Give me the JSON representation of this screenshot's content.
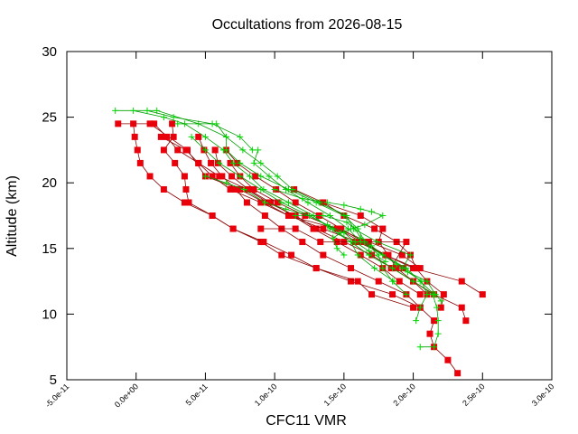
{
  "chart_data": {
    "type": "line",
    "title": "Occultations from 2026-08-15",
    "xlabel": "CFC11 VMR",
    "ylabel": "Altitude (km)",
    "xlim": [
      -5e-11,
      3e-10
    ],
    "ylim": [
      5,
      30
    ],
    "x_ticks": [
      -5e-11,
      0,
      5e-11,
      1e-10,
      1.5e-10,
      2e-10,
      2.5e-10,
      3e-10
    ],
    "x_tick_labels": [
      "-5.0e-11",
      "0.0e+00",
      "5.0e-11",
      "1.0e-10",
      "1.5e-10",
      "2.0e-10",
      "2.5e-10",
      "3.0e-10"
    ],
    "y_ticks": [
      5,
      10,
      15,
      20,
      25,
      30
    ],
    "y_tick_labels": [
      "5",
      "10",
      "15",
      "20",
      "25",
      "30"
    ],
    "grid": false,
    "legend": "none",
    "colors": {
      "red": "#e8000b",
      "green": "#00d800",
      "redline": "#8b0000",
      "greenline": "#00a000"
    },
    "series": [
      {
        "marker": "square",
        "color": "red",
        "points": [
          [
            -1.3e-11,
            24.5
          ],
          [
            1e-11,
            24.5
          ],
          [
            3.7e-11,
            22.5
          ],
          [
            5e-11,
            20.5
          ],
          [
            7.5e-11,
            19.5
          ],
          [
            1.1e-10,
            17.5
          ],
          [
            1.45e-10,
            16.5
          ],
          [
            1.8e-10,
            14.5
          ],
          [
            2e-10,
            13.5
          ],
          [
            2.35e-10,
            12.5
          ],
          [
            2.5e-10,
            11.5
          ]
        ]
      },
      {
        "marker": "square",
        "color": "red",
        "points": [
          [
            -2e-12,
            24.5
          ],
          [
            -1e-12,
            23.5
          ],
          [
            1e-12,
            22.5
          ],
          [
            3e-12,
            21.5
          ],
          [
            1e-11,
            20.5
          ],
          [
            2e-11,
            19.5
          ],
          [
            3.5e-11,
            18.5
          ],
          [
            5.5e-11,
            17.5
          ],
          [
            7e-11,
            16.5
          ],
          [
            9e-11,
            15.5
          ],
          [
            1.05e-10,
            14.5
          ],
          [
            1.3e-10,
            13.5
          ],
          [
            1.55e-10,
            12.5
          ],
          [
            1.85e-10,
            11.5
          ],
          [
            2.05e-10,
            10.5
          ],
          [
            2.15e-10,
            9.5
          ],
          [
            2.12e-10,
            8.5
          ],
          [
            2.15e-10,
            7.5
          ],
          [
            2.25e-10,
            6.5
          ],
          [
            2.32e-10,
            5.5
          ]
        ]
      },
      {
        "marker": "square",
        "color": "red",
        "points": [
          [
            1.8e-11,
            23.5
          ],
          [
            3.6e-11,
            22.5
          ],
          [
            4.5e-11,
            21.5
          ],
          [
            6e-11,
            20.5
          ],
          [
            8e-11,
            19.5
          ],
          [
            9.5e-11,
            18.5
          ],
          [
            1.15e-10,
            17.5
          ],
          [
            1.3e-10,
            16.5
          ],
          [
            1.5e-10,
            15.5
          ],
          [
            1.7e-10,
            14.5
          ],
          [
            1.85e-10,
            13.5
          ],
          [
            2e-10,
            12.5
          ],
          [
            2.15e-10,
            11.5
          ],
          [
            2.35e-10,
            10.5
          ],
          [
            2.38e-10,
            9.5
          ]
        ]
      },
      {
        "marker": "square",
        "color": "red",
        "points": [
          [
            1.3e-11,
            24.5
          ],
          [
            2.2e-11,
            23.5
          ],
          [
            3e-11,
            22.5
          ],
          [
            4.5e-11,
            21.5
          ],
          [
            5.5e-11,
            20.5
          ],
          [
            6.8e-11,
            19.5
          ],
          [
            9e-11,
            18.5
          ],
          [
            1.1e-10,
            17.5
          ],
          [
            1.35e-10,
            16.5
          ],
          [
            1.6e-10,
            15.5
          ],
          [
            1.8e-10,
            14.5
          ],
          [
            2.02e-10,
            13.5
          ],
          [
            2.1e-10,
            12.5
          ],
          [
            2.22e-10,
            11.5
          ],
          [
            2.2e-10,
            10.5
          ]
        ]
      },
      {
        "marker": "square",
        "color": "red",
        "points": [
          [
            2.6e-11,
            24.5
          ],
          [
            2.7e-11,
            23.5
          ],
          [
            2e-11,
            22.5
          ],
          [
            2.8e-11,
            21.5
          ],
          [
            3.5e-11,
            20.5
          ],
          [
            3.6e-11,
            19.5
          ],
          [
            3.8e-11,
            18.5
          ],
          [
            5.5e-11,
            17.5
          ],
          [
            7e-11,
            16.5
          ],
          [
            9.2e-11,
            15.5
          ],
          [
            1.12e-10,
            14.5
          ],
          [
            1.3e-10,
            13.5
          ],
          [
            1.6e-10,
            12.5
          ],
          [
            1.7e-10,
            11.5
          ],
          [
            2e-10,
            10.5
          ]
        ]
      },
      {
        "marker": "square",
        "color": "red",
        "points": [
          [
            4.5e-11,
            23.5
          ],
          [
            4.9e-11,
            22.5
          ],
          [
            5.4e-11,
            21.5
          ],
          [
            6.2e-11,
            20.5
          ],
          [
            7.2e-11,
            19.5
          ],
          [
            8e-11,
            18.5
          ],
          [
            9.3e-11,
            17.5
          ],
          [
            1.05e-10,
            16.5
          ],
          [
            1.2e-10,
            15.5
          ],
          [
            1.35e-10,
            14.5
          ],
          [
            1.55e-10,
            13.5
          ],
          [
            1.75e-10,
            12.5
          ],
          [
            1.95e-10,
            11.5
          ],
          [
            2.05e-10,
            10.5
          ]
        ]
      },
      {
        "marker": "square",
        "color": "red",
        "points": [
          [
            5.7e-11,
            22.5
          ],
          [
            5.9e-11,
            21.5
          ],
          [
            6.9e-11,
            20.5
          ],
          [
            8.1e-11,
            19.5
          ],
          [
            9.7e-11,
            18.5
          ],
          [
            1.13e-10,
            17.5
          ],
          [
            1.28e-10,
            16.5
          ],
          [
            1.45e-10,
            15.5
          ],
          [
            1.62e-10,
            14.5
          ],
          [
            1.78e-10,
            13.5
          ],
          [
            1.9e-10,
            12.5
          ],
          [
            2.05e-10,
            11.5
          ]
        ]
      },
      {
        "marker": "square",
        "color": "red",
        "points": [
          [
            6.5e-11,
            22.5
          ],
          [
            7.3e-11,
            21.5
          ],
          [
            8.6e-11,
            20.5
          ],
          [
            1.01e-10,
            19.5
          ],
          [
            1.15e-10,
            18.5
          ],
          [
            1.32e-10,
            17.5
          ],
          [
            1.48e-10,
            16.5
          ],
          [
            1.64e-10,
            15.5
          ],
          [
            1.8e-10,
            14.5
          ],
          [
            1.93e-10,
            13.5
          ]
        ]
      },
      {
        "marker": "square",
        "color": "red",
        "points": [
          [
            6.8e-11,
            21.5
          ],
          [
            7.5e-11,
            20.5
          ],
          [
            8.5e-11,
            19.5
          ],
          [
            1.02e-10,
            18.5
          ],
          [
            1.22e-10,
            17.5
          ],
          [
            1.45e-10,
            16.5
          ],
          [
            1.68e-10,
            15.5
          ],
          [
            1.92e-10,
            14.5
          ],
          [
            2.05e-10,
            13.5
          ]
        ]
      },
      {
        "marker": "square",
        "color": "red",
        "points": [
          [
            1.14e-10,
            19.5
          ],
          [
            1.35e-10,
            18.5
          ],
          [
            1.5e-10,
            17.5
          ],
          [
            1.72e-10,
            16.5
          ],
          [
            1.88e-10,
            15.5
          ],
          [
            1.98e-10,
            14.5
          ],
          [
            2.02e-10,
            13.5
          ]
        ]
      },
      {
        "marker": "square",
        "color": "red",
        "points": [
          [
            1.35e-10,
            18.5
          ],
          [
            1.62e-10,
            17.5
          ],
          [
            1.78e-10,
            16.5
          ],
          [
            1.75e-10,
            15.5
          ],
          [
            1.82e-10,
            14.5
          ],
          [
            1.88e-10,
            13.5
          ],
          [
            2e-10,
            12.5
          ],
          [
            2.1e-10,
            11.5
          ]
        ]
      },
      {
        "marker": "square",
        "color": "red",
        "points": [
          [
            9e-11,
            16.5
          ],
          [
            1.15e-10,
            16.5
          ],
          [
            1.33e-10,
            15.5
          ],
          [
            1.58e-10,
            15.5
          ],
          [
            1.95e-10,
            15.5
          ],
          [
            1.84e-10,
            13.5
          ]
        ]
      },
      {
        "marker": "plus",
        "color": "green",
        "points": [
          [
            -1.5e-11,
            25.5
          ],
          [
            1.5e-11,
            25.5
          ],
          [
            4.5e-11,
            24.5
          ],
          [
            6.5e-11,
            23.5
          ],
          [
            7.7e-11,
            22.5
          ],
          [
            9e-11,
            21.5
          ],
          [
            1.02e-10,
            20.5
          ],
          [
            1.13e-10,
            19.5
          ],
          [
            1.32e-10,
            18.5
          ],
          [
            1.52e-10,
            17.5
          ],
          [
            1.57e-10,
            16.5
          ],
          [
            1.74e-10,
            15.5
          ],
          [
            1.98e-10,
            14.5
          ],
          [
            1.92e-10,
            13.5
          ],
          [
            2.06e-10,
            12.5
          ],
          [
            2.1e-10,
            11.5
          ],
          [
            2.05e-10,
            10.5
          ],
          [
            2.02e-10,
            9.5
          ]
        ]
      },
      {
        "marker": "plus",
        "color": "green",
        "points": [
          [
            -2e-12,
            25.5
          ],
          [
            2e-11,
            25
          ],
          [
            3.5e-11,
            24.5
          ],
          [
            5e-11,
            23.5
          ],
          [
            6.3e-11,
            22.5
          ],
          [
            7e-11,
            21.5
          ],
          [
            8.2e-11,
            20.5
          ],
          [
            9.2e-11,
            19.5
          ],
          [
            1.1e-10,
            18.5
          ],
          [
            1.28e-10,
            17.5
          ],
          [
            1.4e-10,
            16.5
          ],
          [
            1.55e-10,
            15.5
          ],
          [
            1.68e-10,
            14.5
          ],
          [
            1.85e-10,
            13.5
          ],
          [
            2e-10,
            12.5
          ],
          [
            2.14e-10,
            11.5
          ],
          [
            2.17e-10,
            10.5
          ],
          [
            2.18e-10,
            9.5
          ],
          [
            2.18e-10,
            8.5
          ],
          [
            2.15e-10,
            7.5
          ],
          [
            2.05e-10,
            7.5
          ]
        ]
      },
      {
        "marker": "plus",
        "color": "green",
        "points": [
          [
            8e-12,
            25.5
          ],
          [
            2.7e-11,
            25
          ],
          [
            5.5e-11,
            24.5
          ],
          [
            7.5e-11,
            23.5
          ],
          [
            8.4e-11,
            22.5
          ],
          [
            8.8e-11,
            22.5
          ],
          [
            8.5e-11,
            21.5
          ],
          [
            9.6e-11,
            20.5
          ],
          [
            1.08e-10,
            19.5
          ],
          [
            1.24e-10,
            18.5
          ],
          [
            1.4e-10,
            17.5
          ],
          [
            1.53e-10,
            16.5
          ],
          [
            1.62e-10,
            15.5
          ],
          [
            1.78e-10,
            14.5
          ],
          [
            1.95e-10,
            13.5
          ],
          [
            2.05e-10,
            12.5
          ],
          [
            2.15e-10,
            11.5
          ]
        ]
      },
      {
        "marker": "plus",
        "color": "green",
        "points": [
          [
            3e-11,
            24.5
          ],
          [
            5.8e-11,
            24.5
          ],
          [
            6.5e-11,
            23.5
          ],
          [
            6.5e-11,
            22.5
          ],
          [
            7.5e-11,
            21.5
          ],
          [
            9e-11,
            20.5
          ],
          [
            1.1e-10,
            19.5
          ],
          [
            1.3e-10,
            18.5
          ],
          [
            1.5e-10,
            17.5
          ],
          [
            1.6e-10,
            16.5
          ],
          [
            1.65e-10,
            15.5
          ],
          [
            1.75e-10,
            14.5
          ],
          [
            1.78e-10,
            13.5
          ],
          [
            1.85e-10,
            12.5
          ],
          [
            1.95e-10,
            11.5
          ]
        ]
      },
      {
        "marker": "plus",
        "color": "green",
        "points": [
          [
            4e-11,
            23.5
          ],
          [
            5e-11,
            22.5
          ],
          [
            6e-11,
            21.5
          ],
          [
            7.5e-11,
            20.5
          ],
          [
            9e-11,
            19.5
          ],
          [
            1.05e-10,
            18.5
          ],
          [
            1.25e-10,
            17.5
          ],
          [
            1.42e-10,
            16.5
          ],
          [
            1.55e-10,
            15.5
          ],
          [
            1.6e-10,
            14.5
          ],
          [
            1.72e-10,
            13.5
          ],
          [
            1.86e-10,
            12.5
          ]
        ]
      },
      {
        "marker": "plus",
        "color": "green",
        "points": [
          [
            1e-10,
            19.5
          ],
          [
            1.2e-10,
            18.8
          ],
          [
            1.38e-10,
            18.5
          ],
          [
            1.5e-10,
            18.3
          ],
          [
            1.62e-10,
            18
          ],
          [
            1.7e-10,
            17.8
          ],
          [
            1.78e-10,
            17.5
          ],
          [
            1.65e-10,
            16.8
          ],
          [
            1.55e-10,
            16.5
          ],
          [
            1.48e-10,
            16.2
          ],
          [
            1.42e-10,
            15.8
          ],
          [
            1.45e-10,
            15
          ],
          [
            1.5e-10,
            14.5
          ]
        ]
      },
      {
        "marker": "plus",
        "color": "green",
        "points": [
          [
            5e-11,
            20.5
          ],
          [
            6.5e-11,
            20
          ],
          [
            7.8e-11,
            19.5
          ],
          [
            9.3e-11,
            18.5
          ],
          [
            1.08e-10,
            18
          ],
          [
            1.25e-10,
            17.5
          ],
          [
            1.38e-10,
            16.8
          ],
          [
            1.5e-10,
            16.2
          ],
          [
            1.58e-10,
            15.5
          ],
          [
            1.68e-10,
            14.8
          ],
          [
            1.8e-10,
            14
          ]
        ]
      },
      {
        "marker": "plus",
        "color": "green",
        "points": [
          [
            1.15e-10,
            17.5
          ],
          [
            1.35e-10,
            17.5
          ],
          [
            1.52e-10,
            17
          ],
          [
            1.58e-10,
            16.5
          ],
          [
            1.62e-10,
            15.8
          ],
          [
            1.7e-10,
            15.2
          ],
          [
            1.78e-10,
            14.5
          ],
          [
            1.88e-10,
            13.8
          ],
          [
            1.96e-10,
            13.2
          ],
          [
            2.1e-10,
            12.5
          ],
          [
            2.16e-10,
            11.5
          ],
          [
            2.2e-10,
            11
          ]
        ]
      }
    ]
  }
}
